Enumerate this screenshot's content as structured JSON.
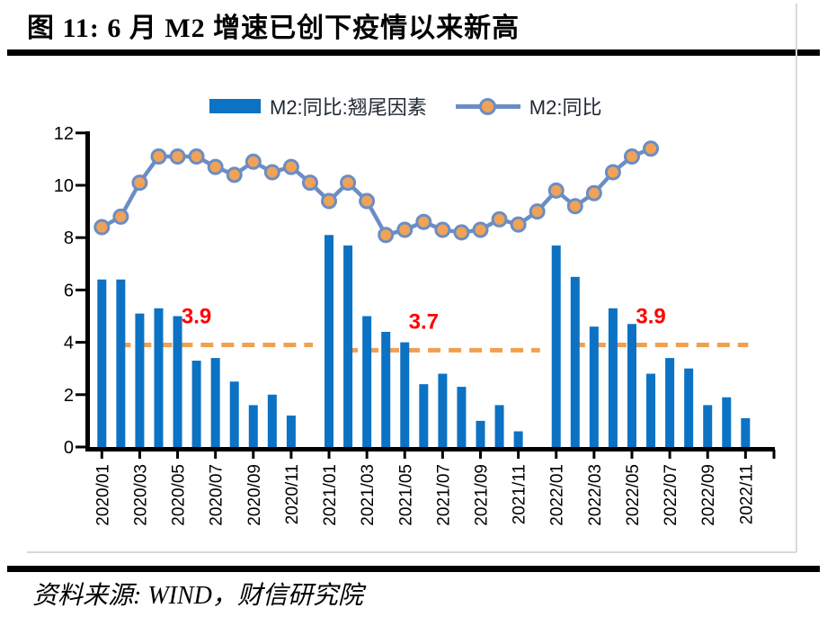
{
  "header": {
    "title": "图 11: 6 月 M2 增速已创下疫情以来新高"
  },
  "footer": {
    "source": "资料来源: WIND，财信研究院"
  },
  "legend": {
    "bar_label": "M2:同比:翘尾因素",
    "line_label": "M2:同比"
  },
  "colors": {
    "bar": "#0c72c4",
    "line": "#6b8dc4",
    "marker_fill": "#f0a257",
    "dash": "#f0a04f",
    "annotation_text": "#ff0000",
    "axis": "#000000",
    "frame_gray": "#d9d9d9"
  },
  "chart_data": {
    "type": "combo bar+line",
    "title": "图 11: 6 月 M2 增速已创下疫情以来新高",
    "ylim": [
      0,
      12
    ],
    "y_ticks": [
      0,
      2,
      4,
      6,
      8,
      10,
      12
    ],
    "grid": false,
    "legend_position": "top-center",
    "months": [
      "2020/01",
      "2020/02",
      "2020/03",
      "2020/04",
      "2020/05",
      "2020/06",
      "2020/07",
      "2020/08",
      "2020/09",
      "2020/10",
      "2020/11",
      "2020/12",
      "2021/01",
      "2021/02",
      "2021/03",
      "2021/04",
      "2021/05",
      "2021/06",
      "2021/07",
      "2021/08",
      "2021/09",
      "2021/10",
      "2021/11",
      "2021/12",
      "2022/01",
      "2022/02",
      "2022/03",
      "2022/04",
      "2022/05",
      "2022/06",
      "2022/07",
      "2022/08",
      "2022/09",
      "2022/10",
      "2022/11"
    ],
    "x_tick_labels": [
      "2020/01",
      "2020/03",
      "2020/05",
      "2020/07",
      "2020/09",
      "2020/11",
      "2021/01",
      "2021/03",
      "2021/05",
      "2021/07",
      "2021/09",
      "2021/11",
      "2022/01",
      "2022/03",
      "2022/05",
      "2022/07",
      "2022/09",
      "2022/11"
    ],
    "series": [
      {
        "name": "M2:同比:翘尾因素",
        "type": "bar",
        "values": [
          6.4,
          6.4,
          5.1,
          5.3,
          5.0,
          3.3,
          3.4,
          2.5,
          1.6,
          2.0,
          1.2,
          null,
          8.1,
          7.7,
          5.0,
          4.4,
          4.0,
          2.4,
          2.8,
          2.3,
          1.0,
          1.6,
          0.6,
          null,
          7.7,
          6.5,
          4.6,
          5.3,
          4.7,
          2.8,
          3.4,
          3.0,
          1.6,
          1.9,
          1.1
        ]
      },
      {
        "name": "M2:同比",
        "type": "line",
        "values": [
          8.4,
          8.8,
          10.1,
          11.1,
          11.1,
          11.1,
          10.7,
          10.4,
          10.9,
          10.5,
          10.7,
          10.1,
          9.4,
          10.1,
          9.4,
          8.1,
          8.3,
          8.6,
          8.3,
          8.2,
          8.3,
          8.7,
          8.5,
          9.0,
          9.8,
          9.2,
          9.7,
          10.5,
          11.1,
          11.4,
          null,
          null,
          null,
          null,
          null
        ]
      }
    ],
    "annotations": [
      {
        "label": "3.9",
        "value": 3.9,
        "from_month": "2020/02",
        "to_month": "2020/12"
      },
      {
        "label": "3.7",
        "value": 3.7,
        "from_month": "2021/02",
        "to_month": "2021/12"
      },
      {
        "label": "3.9",
        "value": 3.9,
        "from_month": "2022/02",
        "to_month": "2022/11"
      }
    ]
  }
}
